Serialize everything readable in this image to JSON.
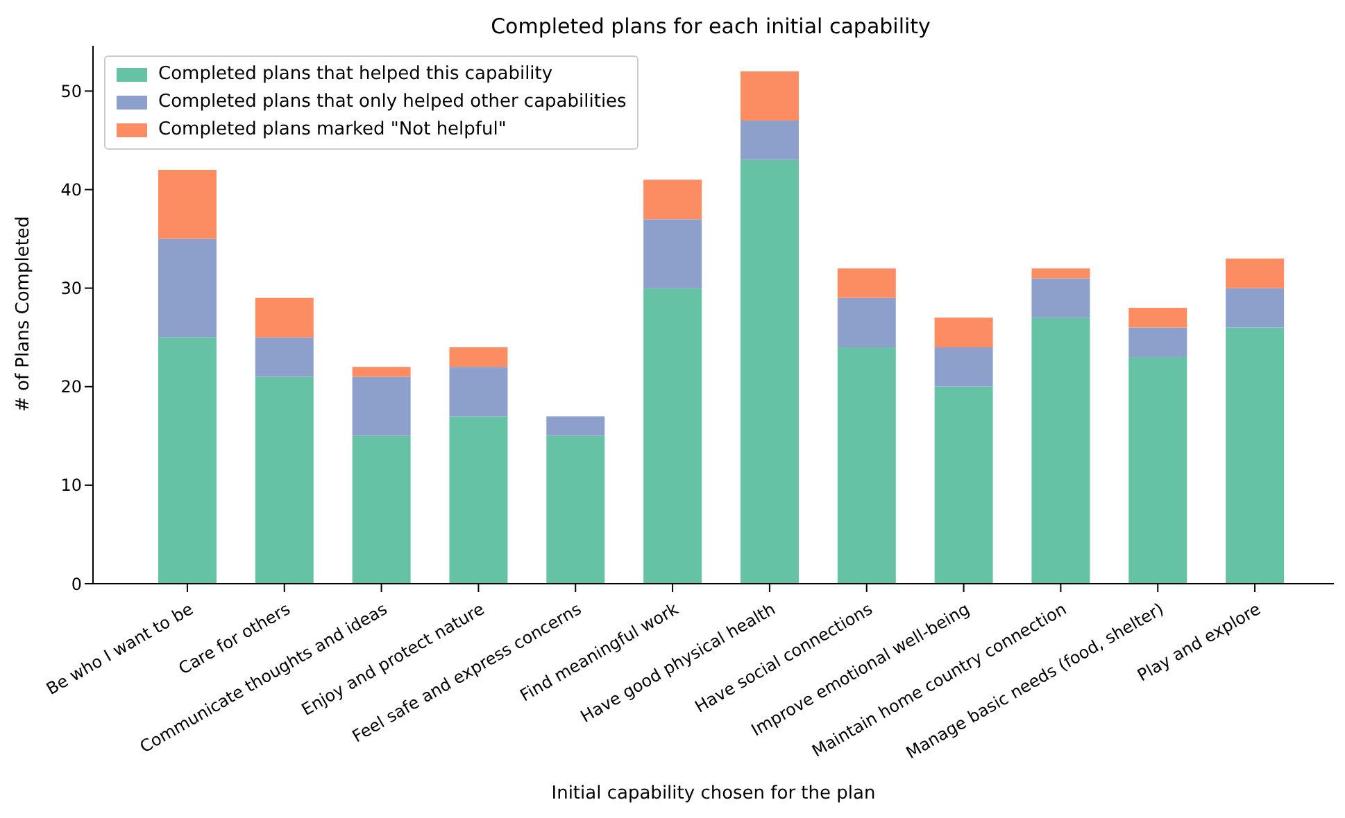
{
  "chart_data": {
    "type": "bar",
    "title": "Completed plans for each initial capability",
    "xlabel": "Initial capability chosen for the plan",
    "ylabel": "# of Plans Completed",
    "categories": [
      "Be who I want to be",
      "Care for others",
      "Communicate thoughts and ideas",
      "Enjoy and protect nature",
      "Feel safe and express concerns",
      "Find meaningful work",
      "Have good physical health",
      "Have social connections",
      "Improve emotional well-being",
      "Maintain home country connection",
      "Manage basic needs (food, shelter)",
      "Play and explore"
    ],
    "stacked": true,
    "series": [
      {
        "name": "Completed plans that helped this capability",
        "color": "#66c2a5",
        "values": [
          25,
          21,
          15,
          17,
          15,
          30,
          43,
          24,
          20,
          27,
          23,
          26
        ]
      },
      {
        "name": "Completed plans that only helped other capabilities",
        "color": "#8da0cb",
        "values": [
          10,
          4,
          6,
          5,
          2,
          7,
          4,
          5,
          4,
          4,
          3,
          4
        ]
      },
      {
        "name": "Completed plans marked \"Not helpful\"",
        "color": "#fc8d62",
        "values": [
          7,
          4,
          1,
          2,
          0,
          4,
          5,
          3,
          3,
          1,
          2,
          3
        ]
      }
    ],
    "ylim": [
      0,
      54.6
    ],
    "yticks": [
      0,
      10,
      20,
      30,
      40,
      50
    ],
    "grid": false,
    "legend": "top left"
  }
}
